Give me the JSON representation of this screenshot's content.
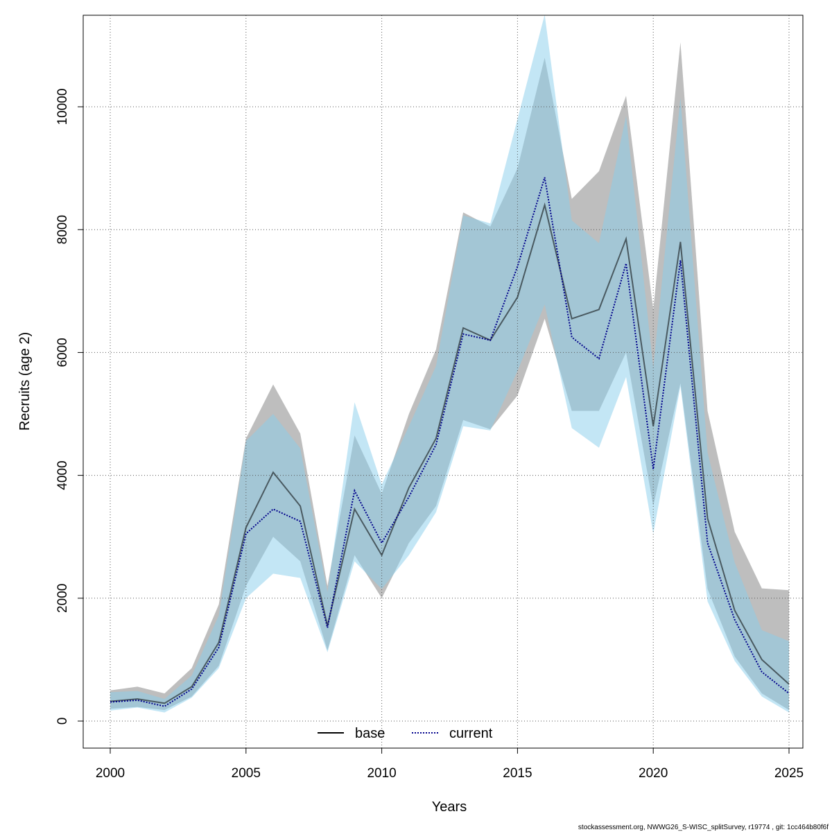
{
  "chart_data": {
    "type": "area",
    "title": "",
    "xlabel": "Years",
    "ylabel": "Recruits (age 2)",
    "xlim": [
      1999,
      2026
    ],
    "ylim": [
      -400,
      11500
    ],
    "x_ticks": [
      2000,
      2005,
      2010,
      2015,
      2020,
      2025
    ],
    "y_ticks": [
      0,
      2000,
      4000,
      6000,
      8000,
      10000
    ],
    "grid": true,
    "legend_position": "bottom-center",
    "x": [
      2000,
      2001,
      2002,
      2003,
      2004,
      2005,
      2006,
      2007,
      2008,
      2009,
      2010,
      2011,
      2012,
      2013,
      2014,
      2015,
      2016,
      2017,
      2018,
      2019,
      2020,
      2021,
      2022,
      2023,
      2024,
      2025
    ],
    "series": [
      {
        "name": "base",
        "line_style": "solid",
        "line_color": "#000000",
        "band_color": "#bebebe",
        "values": [
          320,
          360,
          290,
          560,
          1280,
          3150,
          4050,
          3500,
          1550,
          3450,
          2700,
          3800,
          4600,
          6400,
          6200,
          6900,
          8400,
          6550,
          6700,
          7850,
          4800,
          7800,
          3300,
          1800,
          1000,
          600
        ],
        "lower": [
          200,
          230,
          180,
          400,
          900,
          2200,
          3000,
          2600,
          1150,
          2700,
          2000,
          2900,
          3500,
          4900,
          4750,
          5300,
          6550,
          5050,
          5050,
          6000,
          3500,
          5500,
          2150,
          1050,
          450,
          180
        ],
        "upper": [
          500,
          560,
          450,
          860,
          1900,
          4600,
          5480,
          4680,
          2200,
          4650,
          3700,
          5000,
          6050,
          8280,
          8050,
          9000,
          10800,
          8500,
          8950,
          10180,
          6700,
          11050,
          5050,
          3080,
          2160,
          2130
        ]
      },
      {
        "name": "current",
        "line_style": "dotted",
        "line_color": "#00008b",
        "band_color": "#87ceeb",
        "values": [
          310,
          340,
          240,
          520,
          1200,
          3050,
          3450,
          3250,
          1520,
          3750,
          2900,
          3650,
          4500,
          6300,
          6200,
          7400,
          8850,
          6250,
          5900,
          7450,
          4100,
          7500,
          2900,
          1650,
          800,
          450
        ],
        "lower": [
          170,
          220,
          140,
          380,
          860,
          2000,
          2400,
          2330,
          1120,
          2600,
          2150,
          2700,
          3400,
          4800,
          4730,
          5700,
          6780,
          4770,
          4450,
          5600,
          3050,
          5450,
          1950,
          980,
          400,
          140
        ],
        "upper": [
          470,
          490,
          360,
          740,
          1720,
          4560,
          5000,
          4440,
          2100,
          5190,
          3850,
          4800,
          5780,
          8230,
          8100,
          9800,
          11500,
          8150,
          7780,
          9850,
          5750,
          10150,
          4370,
          2580,
          1480,
          1300
        ]
      }
    ]
  },
  "footer_text": "stockassessment.org, NWWG26_S-WISC_splitSurvey, r19774 , git: 1cc464b80f6f"
}
